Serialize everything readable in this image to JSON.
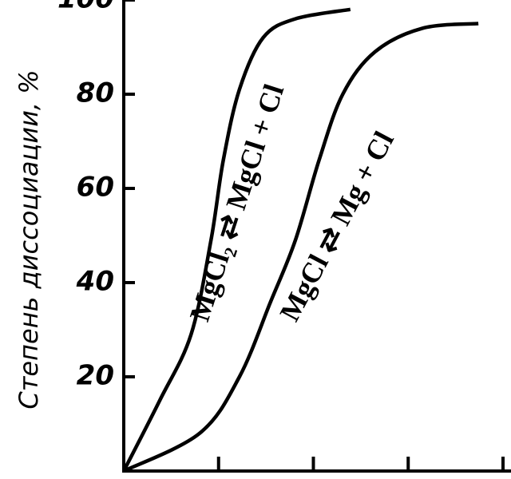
{
  "chart_data": {
    "type": "line",
    "y_label": "Степень диссоциации, %",
    "series": [
      {
        "name": "MgCl₂ ⇄ MgCl + Cl",
        "color": "#000000",
        "x": [
          0,
          0.38,
          0.71,
          0.92,
          1.05,
          1.22,
          1.47,
          1.81,
          2.39
        ],
        "values": [
          0,
          15,
          29,
          49,
          66,
          81,
          92,
          96,
          98
        ]
      },
      {
        "name": "MgCl ⇄ Mg + Cl",
        "color": "#000000",
        "x": [
          0,
          0.8,
          1.22,
          1.55,
          1.81,
          2.06,
          2.31,
          2.65,
          3.15,
          3.74
        ],
        "values": [
          0,
          8,
          20,
          36,
          49,
          66,
          80,
          89,
          94,
          95
        ]
      }
    ],
    "xlim": [
      0,
      4
    ],
    "xticks": [
      1,
      2,
      3,
      4
    ],
    "ylim": [
      0,
      100
    ],
    "yticks": [
      20,
      40,
      60,
      80,
      100
    ]
  }
}
